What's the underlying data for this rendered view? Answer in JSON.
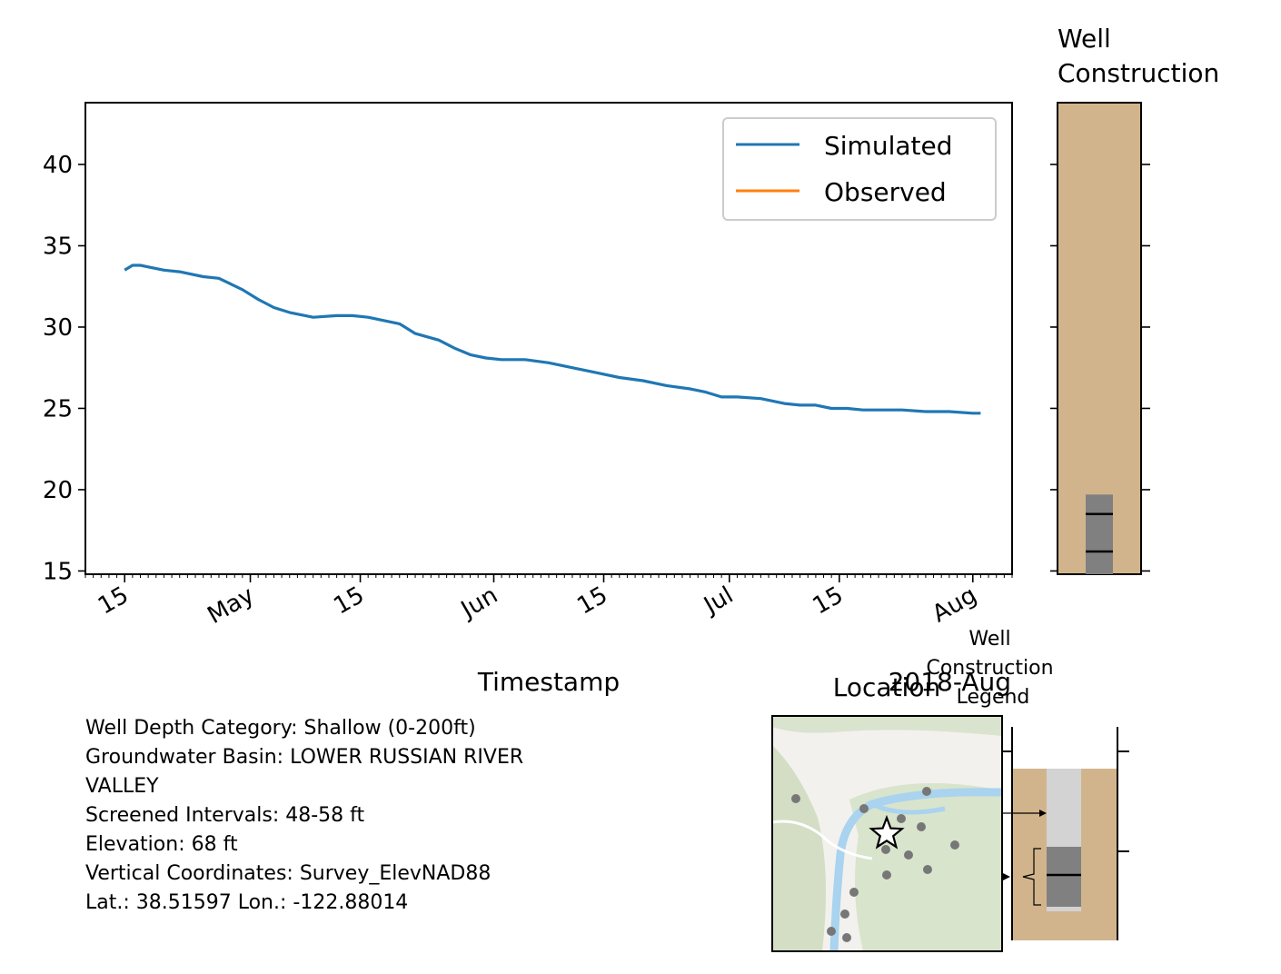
{
  "chart_data": [
    {
      "type": "line",
      "title": "",
      "xlabel": "Timestamp",
      "ylabel": "",
      "x_offset_label": "2018-Aug",
      "x_ticks": [
        "15",
        "May",
        "15",
        "Jun",
        "15",
        "Jul",
        "15",
        "Aug"
      ],
      "x_tick_dates": [
        "2018-04-15",
        "2018-05-01",
        "2018-05-15",
        "2018-06-01",
        "2018-06-15",
        "2018-07-01",
        "2018-07-15",
        "2018-08-01"
      ],
      "xlim": [
        "2018-04-10",
        "2018-08-06"
      ],
      "y_ticks": [
        15,
        20,
        25,
        30,
        35,
        40
      ],
      "ylim": [
        14.8,
        43.8
      ],
      "legend": {
        "position": "upper right",
        "entries": [
          "Simulated",
          "Observed"
        ]
      },
      "series": [
        {
          "name": "Simulated",
          "color": "#1f77b4",
          "x": [
            "2018-04-15",
            "2018-04-16",
            "2018-04-17",
            "2018-04-18",
            "2018-04-20",
            "2018-04-22",
            "2018-04-25",
            "2018-04-27",
            "2018-04-30",
            "2018-05-02",
            "2018-05-04",
            "2018-05-06",
            "2018-05-09",
            "2018-05-12",
            "2018-05-14",
            "2018-05-16",
            "2018-05-18",
            "2018-05-20",
            "2018-05-22",
            "2018-05-25",
            "2018-05-27",
            "2018-05-29",
            "2018-05-31",
            "2018-06-02",
            "2018-06-05",
            "2018-06-08",
            "2018-06-11",
            "2018-06-14",
            "2018-06-17",
            "2018-06-20",
            "2018-06-23",
            "2018-06-26",
            "2018-06-28",
            "2018-06-30",
            "2018-07-02",
            "2018-07-05",
            "2018-07-08",
            "2018-07-10",
            "2018-07-12",
            "2018-07-14",
            "2018-07-16",
            "2018-07-18",
            "2018-07-20",
            "2018-07-23",
            "2018-07-26",
            "2018-07-29",
            "2018-08-01",
            "2018-08-02"
          ],
          "y": [
            33.5,
            33.8,
            33.8,
            33.7,
            33.5,
            33.4,
            33.1,
            33.0,
            32.3,
            31.7,
            31.2,
            30.9,
            30.6,
            30.7,
            30.7,
            30.6,
            30.4,
            30.2,
            29.6,
            29.2,
            28.7,
            28.3,
            28.1,
            28.0,
            28.0,
            27.8,
            27.5,
            27.2,
            26.9,
            26.7,
            26.4,
            26.2,
            26.0,
            25.7,
            25.7,
            25.6,
            25.3,
            25.2,
            25.2,
            25.0,
            25.0,
            24.9,
            24.9,
            24.9,
            24.8,
            24.8,
            24.7,
            24.7
          ]
        },
        {
          "name": "Observed",
          "color": "#ff7f0e",
          "x": [],
          "y": []
        }
      ]
    },
    {
      "type": "bar",
      "title": "Well\nConstruction",
      "description": "well column with screened interval",
      "ylim": [
        14.8,
        43.8
      ],
      "y_ticks": [
        15,
        20,
        25,
        30,
        35,
        40
      ],
      "colors": {
        "soil": "#d2b48c",
        "screen": "#808080",
        "line": "#000000"
      },
      "screen_interval_y": [
        14.8,
        19.7
      ],
      "marker_lines_y": [
        18.5,
        16.2
      ]
    }
  ],
  "info": {
    "lines": [
      "Well Depth Category: Shallow (0-200ft)",
      "Groundwater Basin: LOWER RUSSIAN RIVER",
      "VALLEY",
      "Screened Intervals: 48-58 ft",
      "Elevation: 68 ft",
      "Vertical Coordinates: Survey_ElevNAD88",
      "Lat.: 38.51597 Lon.: -122.88014"
    ]
  },
  "location": {
    "title": "Location"
  },
  "legend_panel": {
    "title_lines": [
      "Well",
      "Construction",
      "Legend"
    ]
  }
}
